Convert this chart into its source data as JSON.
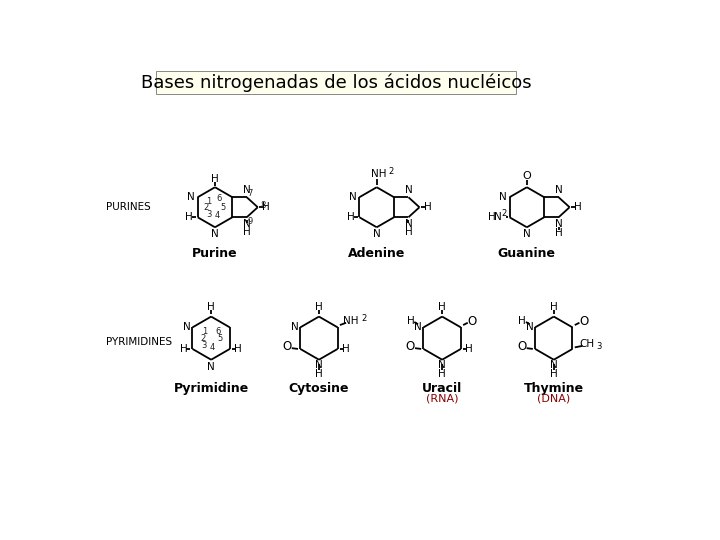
{
  "title": "Bases nitrogenadas de los ácidos nucléicos",
  "title_box_color": "#ffffee",
  "title_fontsize": 13,
  "background_color": "#ffffff",
  "text_color": "#000000",
  "label_purines": "PURINES",
  "label_pyrimidines": "PYRIMIDINES",
  "label_rna": "(RNA)",
  "label_dna": "(DNA)",
  "rna_color": "#880000",
  "dna_color": "#880000",
  "line_color": "#000000",
  "line_width": 1.3
}
